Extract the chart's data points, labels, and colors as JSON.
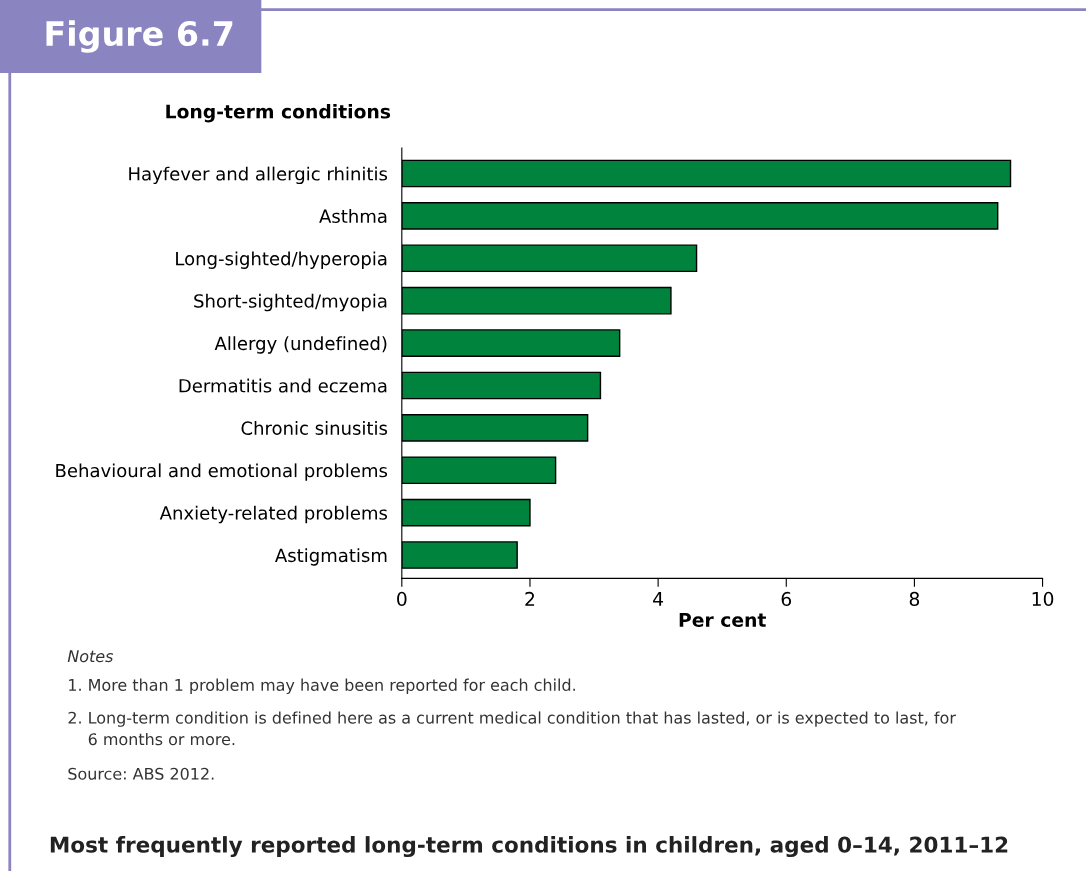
{
  "chart_data": {
    "type": "bar",
    "orientation": "horizontal",
    "title": "Figure 6.7",
    "subtitle": "Most frequently reported long-term conditions in children, aged 0–14, 2011–12",
    "ylabel": "Long-term conditions",
    "xlabel": "Per cent",
    "categories": [
      "Hayfever and allergic rhinitis",
      "Asthma",
      "Long-sighted/hyperopia",
      "Short-sighted/myopia",
      "Allergy (undefined)",
      "Dermatitis and eczema",
      "Chronic sinusitis",
      "Behavioural and emotional problems",
      "Anxiety-related problems",
      "Astigmatism"
    ],
    "values": [
      9.5,
      9.3,
      4.6,
      4.2,
      3.4,
      3.1,
      2.9,
      2.4,
      2.0,
      1.8
    ],
    "color": "#00843d",
    "xlim": [
      0,
      10
    ],
    "xticks": [
      0,
      2,
      4,
      6,
      8,
      10
    ],
    "grid": false,
    "annotations": [
      "Notes",
      "1. More than 1 problem may have been reported for each child.",
      "2. Long-term condition is defined here as a current medical condition that has lasted, or is expected to last, for\n    6 months or more.",
      "Source: ABS 2012."
    ]
  }
}
